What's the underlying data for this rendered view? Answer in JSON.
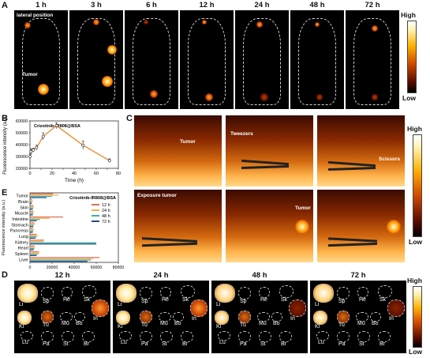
{
  "panelA": {
    "letter": "A",
    "timepoints": [
      "1 h",
      "3 h",
      "6 h",
      "12 h",
      "24 h",
      "48 h",
      "72 h"
    ],
    "inset_label": "lateral position",
    "tumor_label": "Tumor"
  },
  "colorbar": {
    "high": "High",
    "low": "Low"
  },
  "panelB": {
    "letter": "B",
    "legend": "Crizotinib-IR808@BSA",
    "chart_data": {
      "type": "line",
      "x": [
        0,
        1,
        3,
        6,
        12,
        24,
        48,
        72
      ],
      "y": [
        30000,
        34000,
        35500,
        37500,
        47000,
        56000,
        39500,
        26500
      ],
      "error": [
        2000,
        2500,
        1500,
        2000,
        3000,
        2500,
        3500,
        1500
      ],
      "xlabel": "Time (h)",
      "ylabel": "Fluorescence intensity (a.u.)",
      "xticks": [
        "0",
        "10",
        "20",
        "30",
        "40",
        "50",
        "60",
        "70",
        "80"
      ],
      "yticks": [
        "20000",
        "30000",
        "40000",
        "50000",
        "60000"
      ],
      "xlim": [
        0,
        80
      ],
      "ylim": [
        20000,
        60000
      ],
      "color": "#e8923a"
    }
  },
  "panelE": {
    "letter": "E",
    "legend_title": "Crizotinib-IR808@BSA",
    "chart_data": {
      "type": "bar",
      "orientation": "horizontal",
      "categories": [
        "Tumor",
        "Brain",
        "Skin",
        "Muscle",
        "Intestine",
        "Stomach",
        "Pancreas",
        "Lung",
        "Kidney",
        "Heart",
        "Spleen",
        "Liver"
      ],
      "series": [
        {
          "name": "12 h",
          "color": "#e46f5a",
          "values": [
            21000,
            2000,
            3000,
            3000,
            30000,
            4000,
            3000,
            6000,
            13000,
            4000,
            8000,
            63000
          ]
        },
        {
          "name": "24 h",
          "color": "#f5b24b",
          "values": [
            26000,
            2500,
            3500,
            3500,
            18000,
            4500,
            3500,
            7000,
            12000,
            4500,
            9000,
            57000
          ]
        },
        {
          "name": "48 h",
          "color": "#3ab39e",
          "values": [
            20000,
            2000,
            3000,
            3000,
            9000,
            3500,
            3000,
            6000,
            60000,
            4000,
            7000,
            55000
          ]
        },
        {
          "name": "72 h",
          "color": "#2b4a8a",
          "values": [
            15000,
            1500,
            2500,
            2500,
            6000,
            3000,
            2500,
            5000,
            60000,
            3500,
            6000,
            52000
          ]
        }
      ],
      "xticks": [
        "0",
        "20000",
        "40000",
        "60000",
        "80000"
      ],
      "xlim": [
        0,
        80000
      ],
      "ylabel": "Fluorescence intensity (a.u.)"
    }
  },
  "panelC": {
    "letter": "C",
    "labels": {
      "tumor": "Tumor",
      "tweezers": "Tweezers",
      "scissors": "Scissors",
      "exposure": "Exposure tumor",
      "tumor2": "Tumor"
    }
  },
  "panelD": {
    "letter": "D",
    "timepoints": [
      "12 h",
      "24 h",
      "48 h",
      "72 h"
    ],
    "organs": [
      "Li",
      "Sp",
      "He",
      "Sk",
      "In",
      "Ki",
      "Tu",
      "Mu",
      "Bo",
      "Lu",
      "Pa",
      "St",
      "Br"
    ]
  }
}
